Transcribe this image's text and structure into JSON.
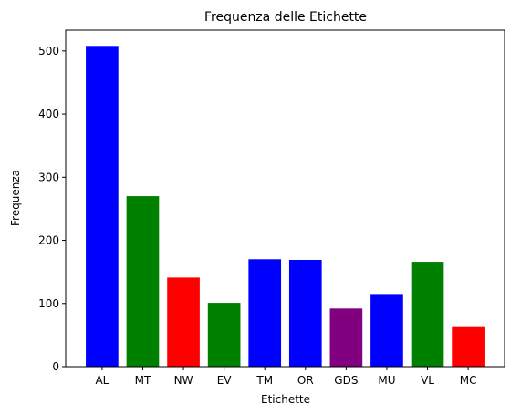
{
  "chart_data": {
    "type": "bar",
    "title": "Frequenza delle Etichette",
    "xlabel": "Etichette",
    "ylabel": "Frequenza",
    "categories": [
      "AL",
      "MT",
      "NW",
      "EV",
      "TM",
      "OR",
      "GDS",
      "MU",
      "VL",
      "MC"
    ],
    "values": [
      508,
      270,
      141,
      101,
      170,
      169,
      92,
      115,
      166,
      64
    ],
    "colors": [
      "#0000ff",
      "#008000",
      "#ff0000",
      "#008000",
      "#0000ff",
      "#0000ff",
      "#800080",
      "#0000ff",
      "#008000",
      "#ff0000"
    ],
    "ylim": [
      0,
      533
    ],
    "yticks": [
      0,
      100,
      200,
      300,
      400,
      500
    ],
    "grid": false,
    "legend": "none"
  }
}
